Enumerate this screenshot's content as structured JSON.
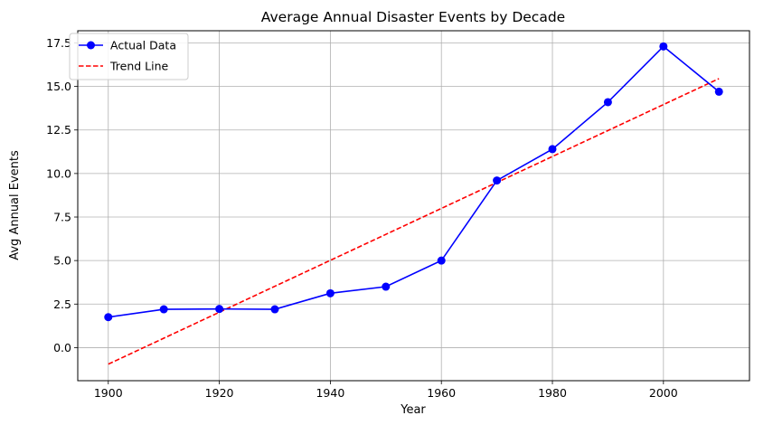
{
  "chart_data": {
    "type": "line",
    "title": "Average Annual Disaster Events by Decade",
    "xlabel": "Year",
    "ylabel": "Avg Annual Events",
    "xlim": [
      1894.5,
      2015.5
    ],
    "ylim": [
      -1.9,
      18.2
    ],
    "xticks": [
      1900,
      1920,
      1940,
      1960,
      1980,
      2000
    ],
    "yticks": [
      0.0,
      2.5,
      5.0,
      7.5,
      10.0,
      12.5,
      15.0,
      17.5
    ],
    "ytick_labels": [
      "0.0",
      "2.5",
      "5.0",
      "7.5",
      "10.0",
      "12.5",
      "15.0",
      "17.5"
    ],
    "grid": true,
    "legend_position": "top-left",
    "series": [
      {
        "name": "Actual Data",
        "style": "solid-line-with-circle-markers",
        "color": "#0000ff",
        "x": [
          1900,
          1910,
          1920,
          1930,
          1940,
          1950,
          1960,
          1970,
          1980,
          1990,
          2000,
          2010
        ],
        "y": [
          1.75,
          2.2,
          2.22,
          2.2,
          3.12,
          3.5,
          5.0,
          9.6,
          11.4,
          14.1,
          17.3,
          14.7
        ]
      },
      {
        "name": "Trend Line",
        "style": "dashed-line",
        "color": "#ff0000",
        "x": [
          1900,
          2010
        ],
        "y": [
          -0.95,
          15.45
        ]
      }
    ]
  }
}
